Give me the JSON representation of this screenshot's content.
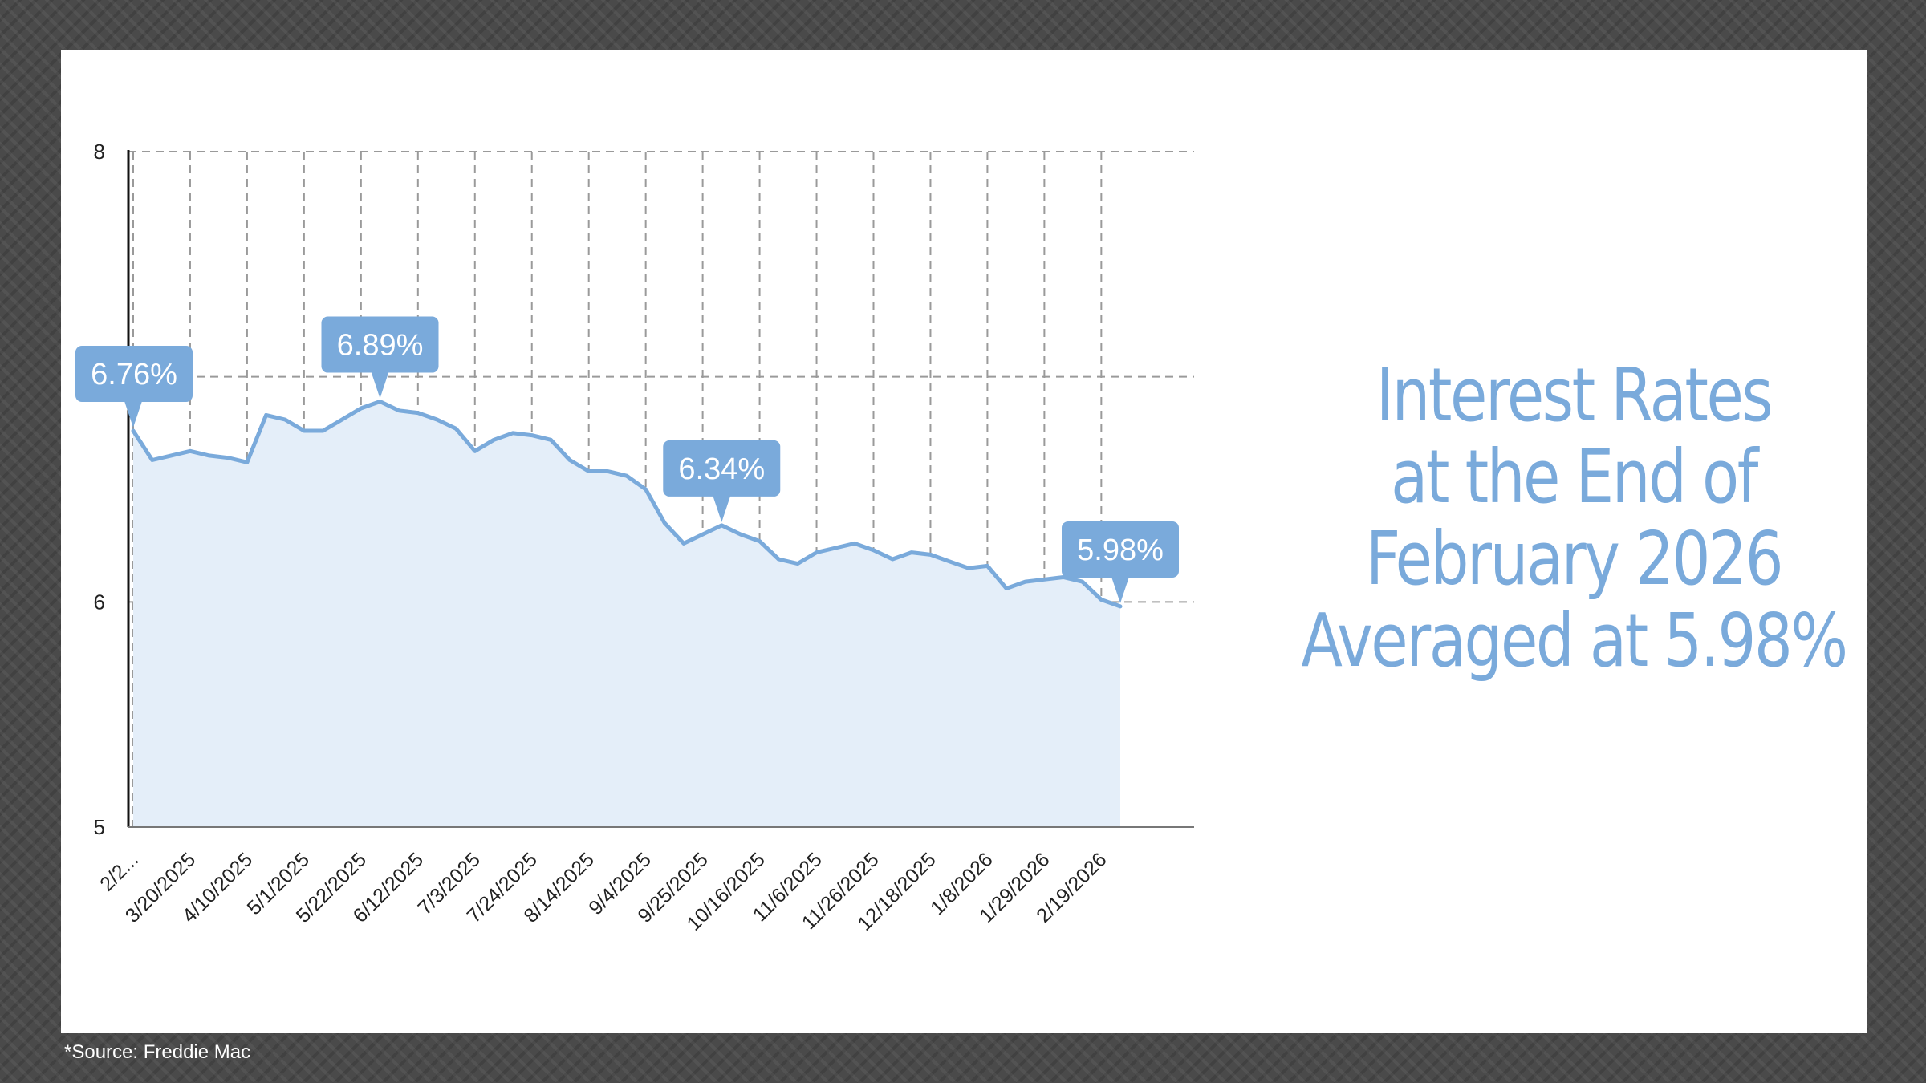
{
  "headline": {
    "lines": [
      "Interest Rates",
      "at the End of",
      "February 2026",
      "Averaged at 5.98%"
    ]
  },
  "source": "*Source: Freddie Mac",
  "colors": {
    "line": "#7aaadb",
    "fill": "#e4eef9",
    "callout": "#7aaadb",
    "headline": "#7aaadb",
    "grid": "#9a9a9a"
  },
  "chart_data": {
    "type": "area",
    "title": "",
    "xlabel": "",
    "ylabel": "",
    "ylim": [
      5,
      8
    ],
    "yticks": [
      5,
      6,
      8
    ],
    "grid": true,
    "x_tick_labels": [
      "2/2...",
      "3/20/2025",
      "4/10/2025",
      "5/1/2025",
      "5/22/2025",
      "6/12/2025",
      "7/3/2025",
      "7/24/2025",
      "8/14/2025",
      "9/4/2025",
      "9/25/2025",
      "10/16/2025",
      "11/6/2025",
      "11/26/2025",
      "12/18/2025",
      "1/8/2026",
      "1/29/2026",
      "2/19/2026"
    ],
    "x": [
      "2/27/2025",
      "3/6/2025",
      "3/13/2025",
      "3/20/2025",
      "3/27/2025",
      "4/3/2025",
      "4/10/2025",
      "4/17/2025",
      "4/24/2025",
      "5/1/2025",
      "5/8/2025",
      "5/15/2025",
      "5/22/2025",
      "5/29/2025",
      "6/5/2025",
      "6/12/2025",
      "6/19/2025",
      "6/26/2025",
      "7/3/2025",
      "7/10/2025",
      "7/17/2025",
      "7/24/2025",
      "7/31/2025",
      "8/7/2025",
      "8/14/2025",
      "8/21/2025",
      "8/28/2025",
      "9/4/2025",
      "9/11/2025",
      "9/18/2025",
      "9/25/2025",
      "10/2/2025",
      "10/9/2025",
      "10/16/2025",
      "10/23/2025",
      "10/30/2025",
      "11/6/2025",
      "11/13/2025",
      "11/20/2025",
      "11/26/2025",
      "12/4/2025",
      "12/11/2025",
      "12/18/2025",
      "12/24/2025",
      "12/31/2025",
      "1/8/2026",
      "1/15/2026",
      "1/22/2026",
      "1/29/2026",
      "2/5/2026",
      "2/12/2026",
      "2/19/2026",
      "2/26/2026"
    ],
    "series": [
      {
        "values": [
          6.76,
          6.63,
          6.65,
          6.67,
          6.65,
          6.64,
          6.62,
          6.83,
          6.81,
          6.76,
          6.76,
          6.81,
          6.86,
          6.89,
          6.85,
          6.84,
          6.81,
          6.77,
          6.67,
          6.72,
          6.75,
          6.74,
          6.72,
          6.63,
          6.58,
          6.58,
          6.56,
          6.5,
          6.35,
          6.26,
          6.3,
          6.34,
          6.3,
          6.27,
          6.19,
          6.17,
          6.22,
          6.24,
          6.26,
          6.23,
          6.19,
          6.22,
          6.21,
          6.18,
          6.15,
          6.16,
          6.06,
          6.09,
          6.1,
          6.11,
          6.09,
          6.01,
          5.98
        ]
      }
    ],
    "annotations": [
      {
        "index": 0,
        "label": "6.76%"
      },
      {
        "index": 13,
        "label": "6.89%"
      },
      {
        "index": 31,
        "label": "6.34%"
      },
      {
        "index": 52,
        "label": "5.98%"
      }
    ]
  }
}
